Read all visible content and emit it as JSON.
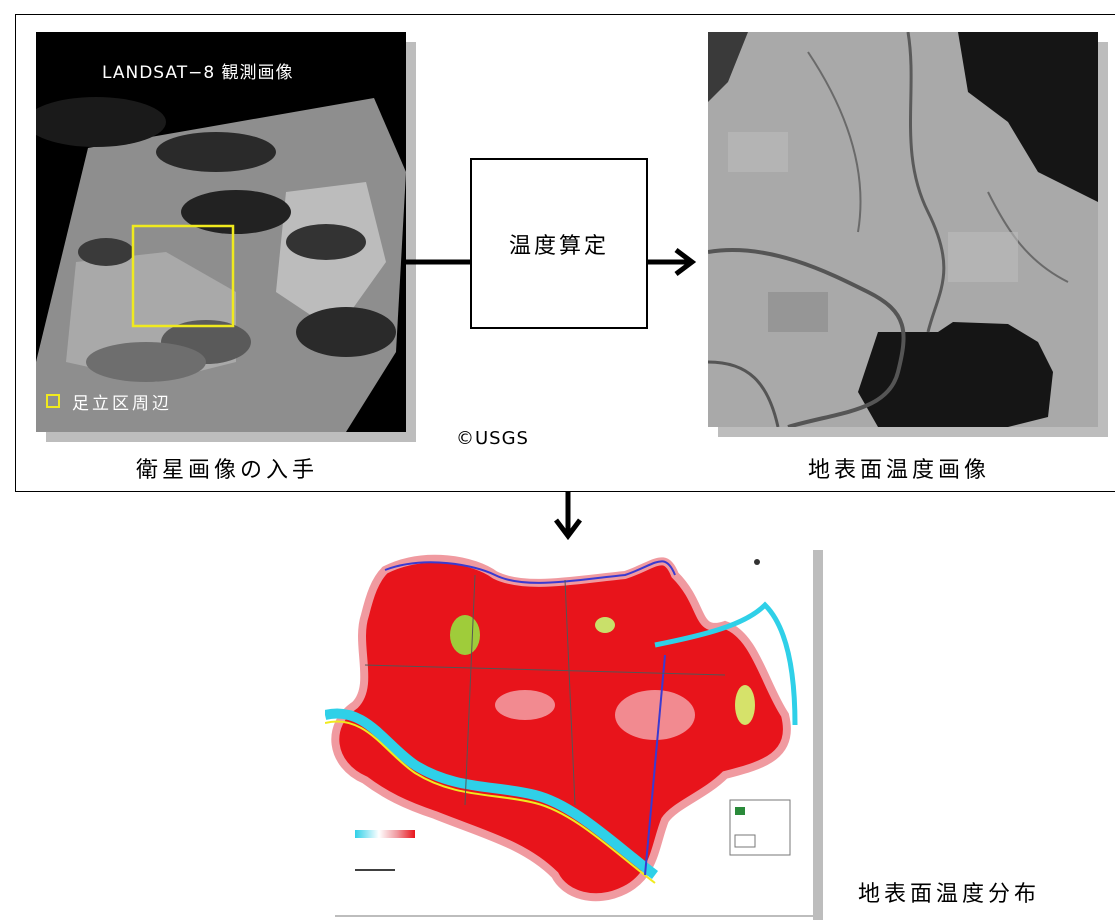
{
  "satellite_image": {
    "title": "LANDSAT−8 観測画像",
    "legend_label": "足立区周辺",
    "caption": "衛星画像の入手"
  },
  "process": {
    "label": "温度算定"
  },
  "credit": "©USGS",
  "surface_temp_image": {
    "caption": "地表面温度画像"
  },
  "distribution_map": {
    "caption": "地表面温度分布"
  },
  "colors": {
    "highlight_box": "#f0ea1e",
    "heat_red": "#e8141b",
    "river_cyan": "#2fd0e8",
    "boundary_blue": "#3a3ad0"
  }
}
